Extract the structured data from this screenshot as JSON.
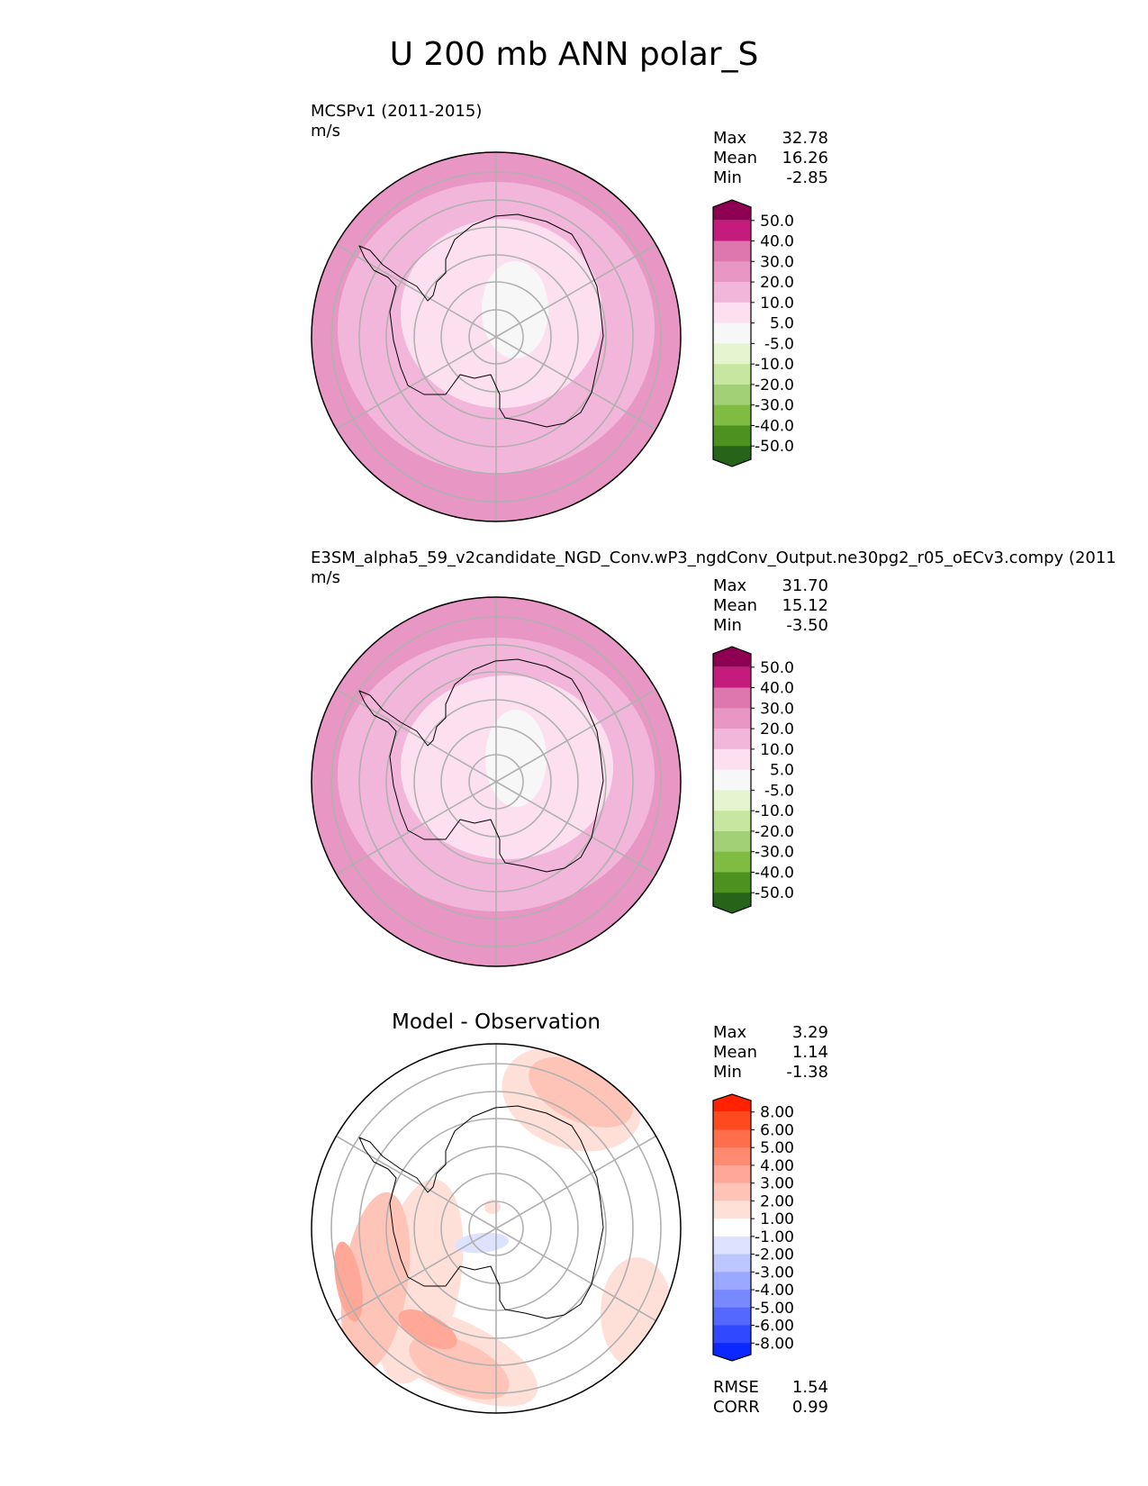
{
  "figure_title": "U 200 mb ANN polar_S",
  "chart_data": [
    {
      "type": "heatmap",
      "projection": "south-polar-stereographic",
      "title": "MCSPv1 (2011-2015)",
      "units": "m/s",
      "stats": [
        {
          "label": "Max",
          "value": "32.78"
        },
        {
          "label": "Mean",
          "value": "16.26"
        },
        {
          "label": "Min",
          "value": "-2.85"
        }
      ],
      "colorbar": {
        "tick_labels": [
          "50.0",
          "40.0",
          "30.0",
          "20.0",
          "10.0",
          "5.0",
          "-5.0",
          "-10.0",
          "-20.0",
          "-30.0",
          "-40.0",
          "-50.0"
        ],
        "colors": [
          "#8e0152",
          "#c51b7d",
          "#de77ae",
          "#e897c4",
          "#f1b6da",
          "#fde0ef",
          "#f7f7f7",
          "#e6f5d0",
          "#c7e7a0",
          "#a1d076",
          "#7fbc41",
          "#4d9221",
          "#276419"
        ],
        "extend": "both"
      },
      "field_levels": [
        {
          "name": "outer ring",
          "range": "20 to 30",
          "color": "#e897c4"
        },
        {
          "name": "middle ring",
          "range": "10 to 20",
          "color": "#f1b6da"
        },
        {
          "name": "inner area",
          "range": "5 to 10",
          "color": "#fde0ef"
        },
        {
          "name": "pole region",
          "range": "-5 to 5",
          "color": "#f7f7f7"
        }
      ]
    },
    {
      "type": "heatmap",
      "projection": "south-polar-stereographic",
      "title": "E3SM_alpha5_59_v2candidate_NGD_Conv.wP3_ngdConv_Output.ne30pg2_r05_oECv3.compy (2011",
      "units": "m/s",
      "stats": [
        {
          "label": "Max",
          "value": "31.70"
        },
        {
          "label": "Mean",
          "value": "15.12"
        },
        {
          "label": "Min",
          "value": "-3.50"
        }
      ],
      "colorbar": {
        "tick_labels": [
          "50.0",
          "40.0",
          "30.0",
          "20.0",
          "10.0",
          "5.0",
          "-5.0",
          "-10.0",
          "-20.0",
          "-30.0",
          "-40.0",
          "-50.0"
        ],
        "colors": [
          "#8e0152",
          "#c51b7d",
          "#de77ae",
          "#e897c4",
          "#f1b6da",
          "#fde0ef",
          "#f7f7f7",
          "#e6f5d0",
          "#c7e7a0",
          "#a1d076",
          "#7fbc41",
          "#4d9221",
          "#276419"
        ],
        "extend": "both"
      },
      "field_levels": [
        {
          "name": "outer ring",
          "range": "20 to 30",
          "color": "#e897c4"
        },
        {
          "name": "middle ring",
          "range": "10 to 20",
          "color": "#f1b6da"
        },
        {
          "name": "inner area",
          "range": "5 to 10",
          "color": "#fde0ef"
        },
        {
          "name": "pole region",
          "range": "-5 to 5",
          "color": "#f7f7f7"
        }
      ]
    },
    {
      "type": "heatmap",
      "projection": "south-polar-stereographic",
      "title": "Model - Observation",
      "units": "",
      "stats": [
        {
          "label": "Max",
          "value": "3.29"
        },
        {
          "label": "Mean",
          "value": "1.14"
        },
        {
          "label": "Min",
          "value": "-1.38"
        }
      ],
      "colorbar": {
        "tick_labels": [
          "8.00",
          "6.00",
          "5.00",
          "4.00",
          "3.00",
          "2.00",
          "1.00",
          "-1.00",
          "-2.00",
          "-3.00",
          "-4.00",
          "-5.00",
          "-6.00",
          "-8.00"
        ],
        "colors": [
          "#ff2200",
          "#ff4a20",
          "#ff6e4a",
          "#ff8a70",
          "#ffa898",
          "#ffc4b8",
          "#ffe0d8",
          "#ffffff",
          "#dde2ff",
          "#bcc6ff",
          "#9aa8ff",
          "#7888ff",
          "#5468ff",
          "#3048ff",
          "#0a28ff"
        ],
        "extend": "both"
      },
      "field_levels": [
        {
          "name": "diff 1 to 2",
          "range": "1 to 2",
          "color": "#ffe0d8"
        },
        {
          "name": "diff 2 to 3",
          "range": "2 to 3",
          "color": "#ffc4b8"
        },
        {
          "name": "diff 3 to 4",
          "range": "3 to 4",
          "color": "#ffa898"
        },
        {
          "name": "diff -1 to -2",
          "range": "-1 to -2",
          "color": "#dde2ff"
        }
      ],
      "metrics": [
        {
          "label": "RMSE",
          "value": "1.54"
        },
        {
          "label": "CORR",
          "value": "0.99"
        }
      ]
    }
  ]
}
